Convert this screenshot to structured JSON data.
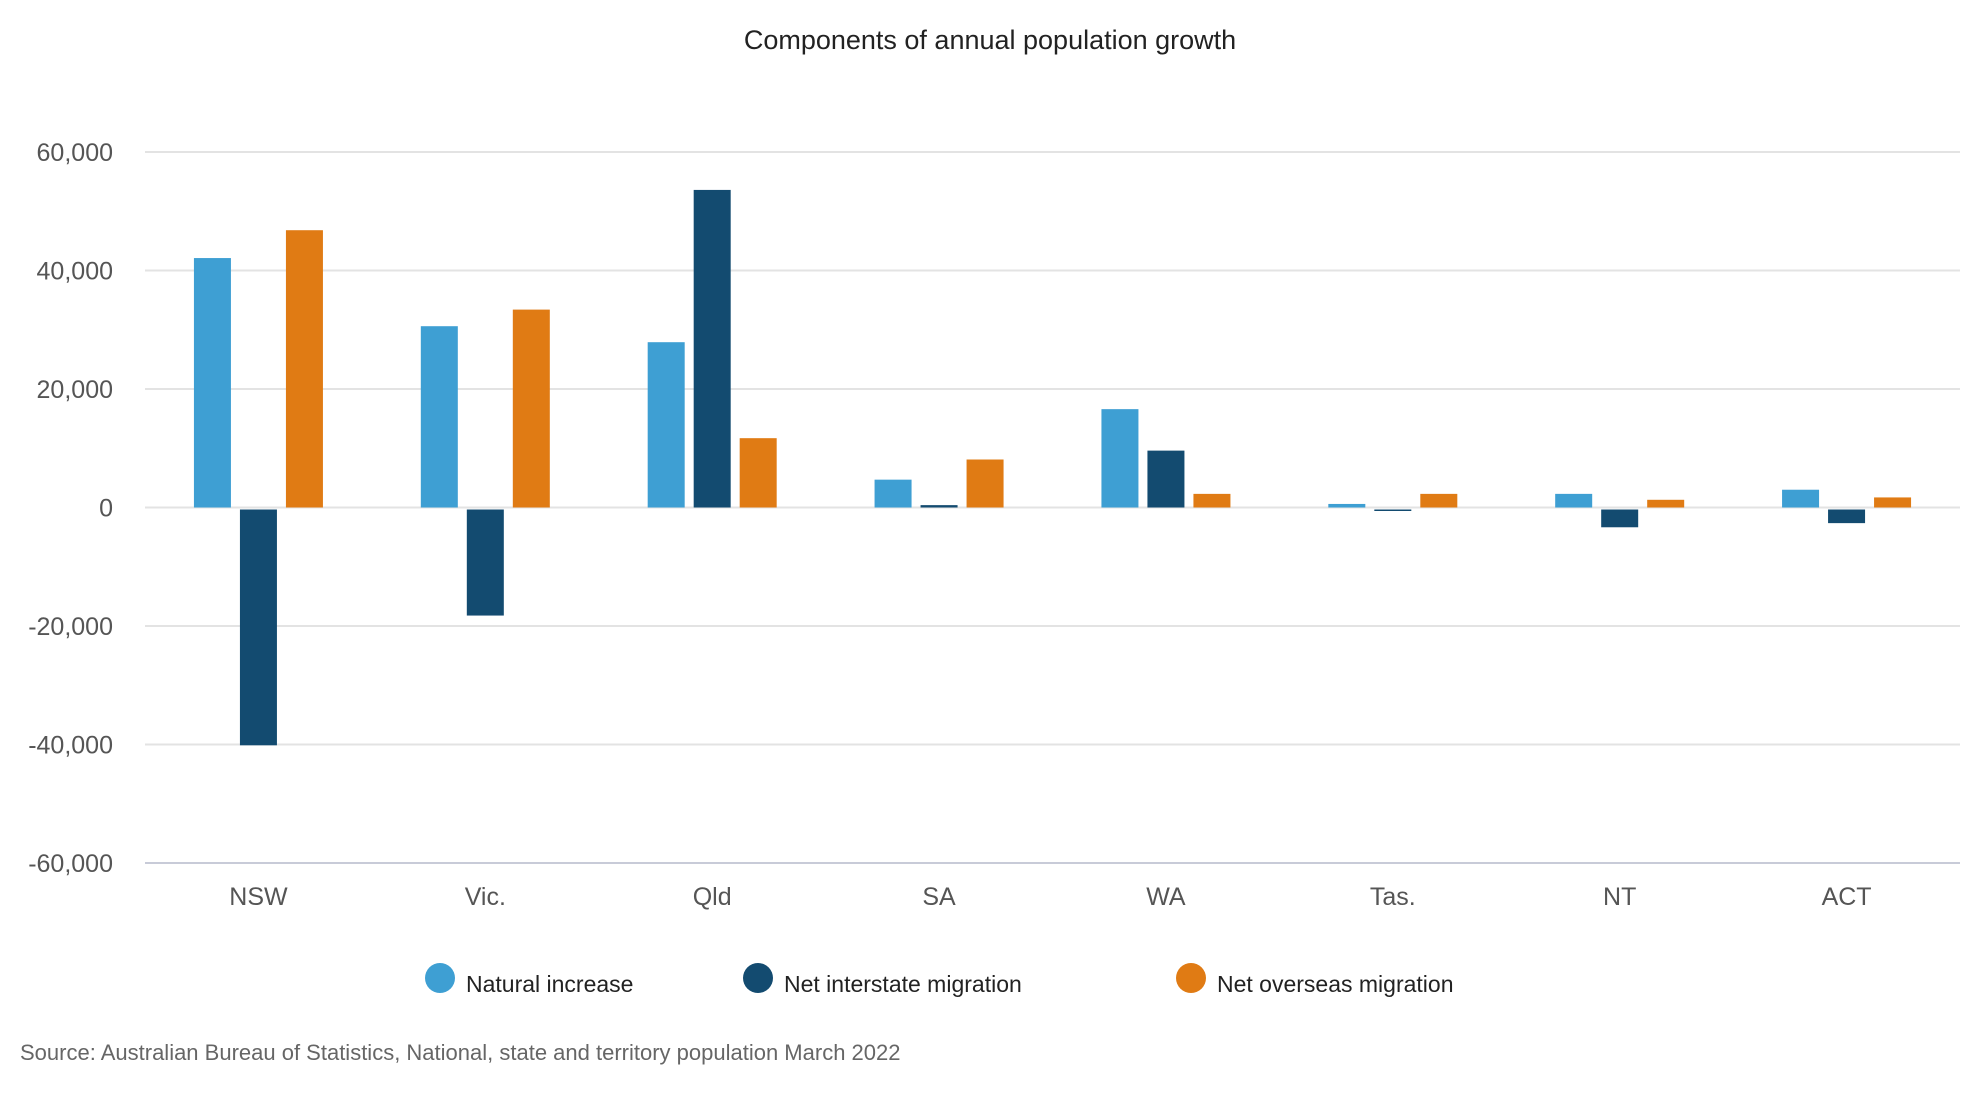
{
  "chart_data": {
    "type": "bar",
    "title": "Components of annual population growth",
    "xlabel": "",
    "ylabel": "",
    "ylim": [
      -60000,
      60000
    ],
    "yticks": [
      60000,
      40000,
      20000,
      0,
      -20000,
      -40000,
      -60000
    ],
    "ytick_labels": [
      "60,000",
      "40,000",
      "20,000",
      "0",
      "-20,000",
      "-40,000",
      "-60,000"
    ],
    "grid": true,
    "legend_position": "bottom",
    "categories": [
      "NSW",
      "Vic.",
      "Qld",
      "SA",
      "WA",
      "Tas.",
      "NT",
      "ACT"
    ],
    "series": [
      {
        "name": "Natural increase",
        "color": "#3e9fd3",
        "values": [
          42100,
          30600,
          27900,
          4700,
          16600,
          600,
          2300,
          3000
        ]
      },
      {
        "name": "Net interstate migration",
        "color": "#134b70",
        "values": [
          -39800,
          -17900,
          53600,
          400,
          9600,
          -100,
          -3000,
          -2300
        ]
      },
      {
        "name": "Net overseas migration",
        "color": "#e07b14",
        "values": [
          46800,
          33400,
          11700,
          8100,
          2300,
          2300,
          1300,
          1700
        ]
      }
    ],
    "source": "Source: Australian Bureau of Statistics, National, state and territory population March 2022"
  }
}
